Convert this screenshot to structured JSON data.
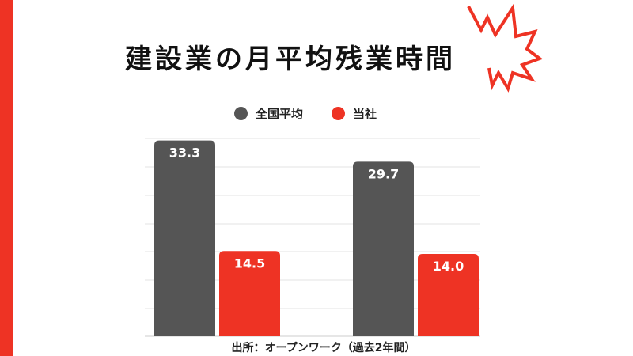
{
  "title": "建設業の月平均残業時間",
  "source": "出所：オープンワーク（過去2年間）",
  "colors": {
    "accent": "#ee3324",
    "national": "#555555",
    "company": "#ee3324"
  },
  "chart_data": {
    "type": "bar",
    "title": "建設業の月平均残業時間",
    "xlabel": "",
    "ylabel": "",
    "categories": [
      "",
      ""
    ],
    "series": [
      {
        "name": "全国平均",
        "color": "#555555",
        "values": [
          33.3,
          29.7
        ],
        "labels": [
          "33.3",
          "29.7"
        ]
      },
      {
        "name": "当社",
        "color": "#ee3324",
        "values": [
          14.5,
          14.0
        ],
        "labels": [
          "14.5",
          "14.0"
        ]
      }
    ],
    "ylim": [
      0,
      35
    ],
    "grid": true,
    "legend_position": "top-center"
  }
}
